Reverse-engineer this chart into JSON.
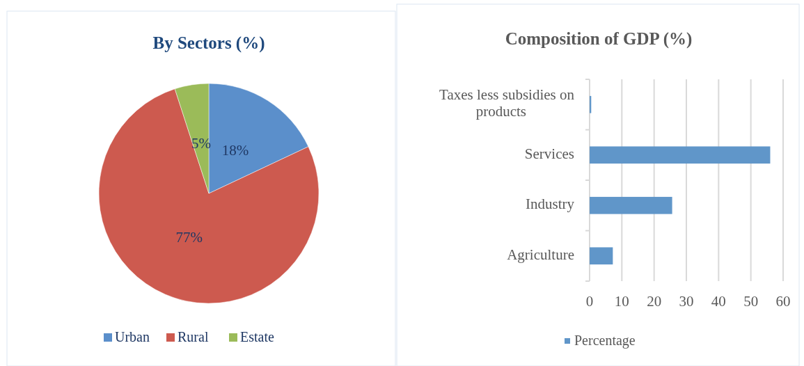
{
  "chart_data": [
    {
      "type": "pie",
      "title": "By Sectors (%)",
      "categories": [
        "Urban",
        "Rural",
        "Estate"
      ],
      "values": [
        18,
        77,
        5
      ],
      "colors": [
        "#5b8fcb",
        "#cd5a4f",
        "#9bbb59"
      ],
      "value_labels": [
        "18%",
        "77%",
        "5%"
      ],
      "legend": "bottom"
    },
    {
      "type": "bar",
      "title": "Composition of GDP (%)",
      "orientation": "horizontal",
      "categories": [
        "Taxes less subsidies on products",
        "Services",
        "Industry",
        "Agriculture"
      ],
      "series": [
        {
          "name": "Percentage",
          "color": "#6096c9",
          "values": [
            0.5,
            56,
            25.6,
            7.2
          ]
        }
      ],
      "xlim": [
        0,
        60
      ],
      "xticks": [
        0,
        10,
        20,
        30,
        40,
        50,
        60
      ],
      "grid": "x",
      "legend": "bottom"
    }
  ]
}
